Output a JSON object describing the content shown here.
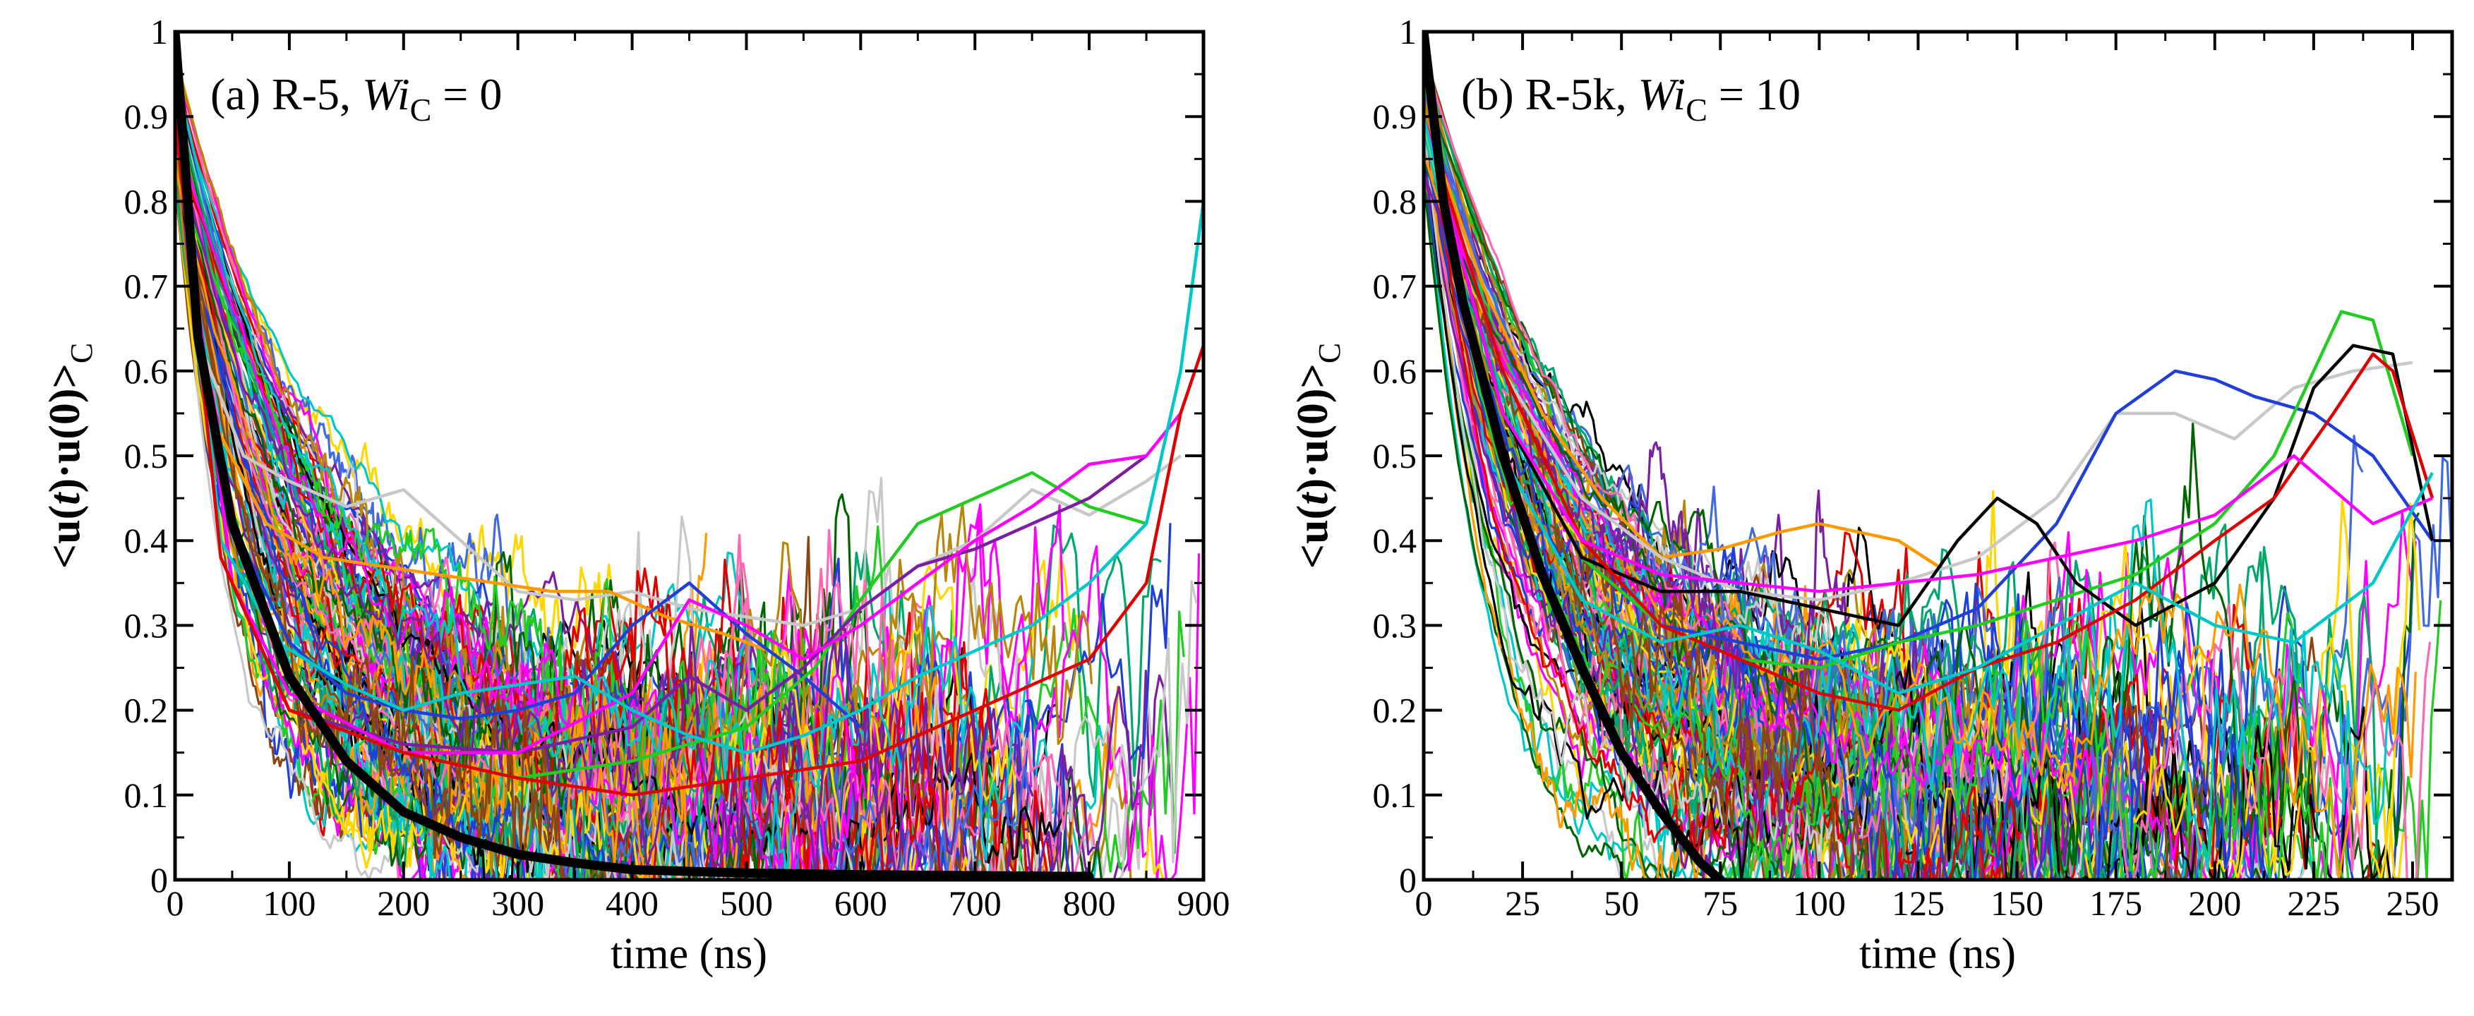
{
  "figure": {
    "background": "#ffffff",
    "axis_color": "#000000"
  },
  "chart_data": [
    {
      "type": "line",
      "panel": "a",
      "annotation": {
        "prefix": "(a) R-5, ",
        "wi": "Wi",
        "sub": "C",
        "value": " = 0"
      },
      "xlabel": "time (ns)",
      "ylabel": {
        "start": "<",
        "u1": "u",
        "lp": "(",
        "t": "t",
        "rp": ")·",
        "u2": "u",
        "zero": "(0)>",
        "sub": "C"
      },
      "xlim": [
        0,
        900
      ],
      "ylim": [
        0,
        1
      ],
      "xticks": [
        0,
        100,
        200,
        300,
        400,
        500,
        600,
        700,
        800,
        900
      ],
      "xtick_labels": [
        "0",
        "100",
        "200",
        "300",
        "400",
        "500",
        "600",
        "700",
        "800",
        "900"
      ],
      "yticks": [
        0,
        0.1,
        0.2,
        0.3,
        0.4,
        0.5,
        0.6,
        0.7,
        0.8,
        0.9,
        1
      ],
      "ytick_labels": [
        "0",
        "0.1",
        "0.2",
        "0.3",
        "0.4",
        "0.5",
        "0.6",
        "0.7",
        "0.8",
        "0.9",
        "1"
      ],
      "highlight": [
        {
          "name": "gray",
          "color": "#c8c8c8",
          "x": [
            0,
            25,
            60,
            100,
            150,
            200,
            250,
            300,
            350,
            400,
            450,
            500,
            550,
            600,
            650,
            700,
            750,
            800,
            850,
            880
          ],
          "y": [
            0.95,
            0.62,
            0.5,
            0.47,
            0.44,
            0.46,
            0.4,
            0.34,
            0.33,
            0.34,
            0.32,
            0.31,
            0.3,
            0.32,
            0.37,
            0.4,
            0.46,
            0.43,
            0.47,
            0.5
          ]
        },
        {
          "name": "orange",
          "color": "#ff9900",
          "x": [
            0,
            30,
            80,
            130,
            180,
            230,
            280,
            330,
            380,
            430,
            480,
            520
          ],
          "y": [
            0.93,
            0.55,
            0.42,
            0.38,
            0.37,
            0.36,
            0.35,
            0.34,
            0.34,
            0.31,
            0.29,
            0.27
          ]
        },
        {
          "name": "blue",
          "color": "#1f3fd8",
          "x": [
            0,
            40,
            100,
            150,
            200,
            250,
            300,
            350,
            400,
            450,
            500,
            550,
            600
          ],
          "y": [
            0.9,
            0.45,
            0.28,
            0.22,
            0.2,
            0.19,
            0.2,
            0.22,
            0.3,
            0.35,
            0.29,
            0.24,
            0.18
          ]
        },
        {
          "name": "green",
          "color": "#22cc22",
          "x": [
            0,
            50,
            100,
            200,
            300,
            400,
            500,
            560,
            600,
            650,
            700,
            750,
            800,
            850
          ],
          "y": [
            0.9,
            0.35,
            0.2,
            0.15,
            0.12,
            0.14,
            0.18,
            0.25,
            0.33,
            0.42,
            0.45,
            0.48,
            0.44,
            0.42
          ]
        },
        {
          "name": "purple",
          "color": "#7a1fa2",
          "x": [
            0,
            50,
            100,
            200,
            300,
            400,
            450,
            500,
            550,
            600,
            650,
            700,
            750,
            800,
            850
          ],
          "y": [
            0.9,
            0.35,
            0.2,
            0.16,
            0.15,
            0.18,
            0.24,
            0.2,
            0.25,
            0.32,
            0.37,
            0.39,
            0.42,
            0.45,
            0.5
          ]
        },
        {
          "name": "magenta",
          "color": "#ff00ff",
          "x": [
            0,
            50,
            100,
            200,
            300,
            400,
            450,
            500,
            550,
            600,
            650,
            700,
            750,
            800,
            850,
            880
          ],
          "y": [
            0.9,
            0.35,
            0.22,
            0.15,
            0.15,
            0.22,
            0.33,
            0.3,
            0.26,
            0.3,
            0.35,
            0.4,
            0.44,
            0.49,
            0.5,
            0.55
          ]
        },
        {
          "name": "teal",
          "color": "#00c8c8",
          "x": [
            0,
            40,
            90,
            150,
            200,
            250,
            300,
            350,
            400,
            450,
            500,
            550,
            600,
            650,
            700,
            750,
            800,
            850,
            880,
            900
          ],
          "y": [
            0.9,
            0.4,
            0.28,
            0.23,
            0.2,
            0.22,
            0.23,
            0.24,
            0.2,
            0.17,
            0.15,
            0.17,
            0.2,
            0.24,
            0.27,
            0.3,
            0.35,
            0.42,
            0.6,
            0.8
          ]
        },
        {
          "name": "red",
          "color": "#e00000",
          "x": [
            0,
            40,
            100,
            200,
            300,
            400,
            500,
            600,
            700,
            800,
            850,
            880,
            900
          ],
          "y": [
            0.9,
            0.38,
            0.2,
            0.15,
            0.12,
            0.1,
            0.12,
            0.14,
            0.2,
            0.26,
            0.35,
            0.55,
            0.63
          ]
        }
      ],
      "average": {
        "color": "#000000",
        "x": [
          0,
          20,
          50,
          100,
          150,
          200,
          250,
          300,
          350,
          400,
          450,
          500,
          600,
          700,
          800
        ],
        "y": [
          1,
          0.64,
          0.42,
          0.24,
          0.14,
          0.08,
          0.05,
          0.03,
          0.02,
          0.012,
          0.01,
          0.008,
          0.006,
          0.005,
          0.004
        ]
      }
    },
    {
      "type": "line",
      "panel": "b",
      "annotation": {
        "prefix": "(b) R-5k, ",
        "wi": "Wi",
        "sub": "C",
        "value": " = 10"
      },
      "xlabel": "time (ns)",
      "ylabel": {
        "start": "<",
        "u1": "u",
        "lp": "(",
        "t": "t",
        "rp": ")·",
        "u2": "u",
        "zero": "(0)>",
        "sub": "C"
      },
      "xlim": [
        0,
        260
      ],
      "ylim": [
        0,
        1
      ],
      "xticks": [
        0,
        25,
        50,
        75,
        100,
        125,
        150,
        175,
        200,
        225,
        250
      ],
      "xtick_labels": [
        "0",
        "25",
        "50",
        "75",
        "100",
        "125",
        "150",
        "175",
        "200",
        "225",
        "250"
      ],
      "yticks": [
        0,
        0.1,
        0.2,
        0.3,
        0.4,
        0.5,
        0.6,
        0.7,
        0.8,
        0.9,
        1
      ],
      "ytick_labels": [
        "0",
        "0.1",
        "0.2",
        "0.3",
        "0.4",
        "0.5",
        "0.6",
        "0.7",
        "0.8",
        "0.9",
        "1"
      ],
      "highlight": [
        {
          "name": "orange",
          "color": "#ff9900",
          "x": [
            0,
            15,
            30,
            45,
            60,
            75,
            90,
            100,
            110,
            120,
            130
          ],
          "y": [
            0.9,
            0.7,
            0.55,
            0.45,
            0.38,
            0.39,
            0.41,
            0.42,
            0.41,
            0.4,
            0.37
          ]
        },
        {
          "name": "gray",
          "color": "#c8c8c8",
          "x": [
            0,
            20,
            40,
            60,
            80,
            100,
            120,
            140,
            160,
            175,
            190,
            205,
            220,
            235,
            250
          ],
          "y": [
            0.9,
            0.6,
            0.45,
            0.38,
            0.34,
            0.33,
            0.35,
            0.38,
            0.45,
            0.55,
            0.55,
            0.52,
            0.58,
            0.6,
            0.61
          ]
        },
        {
          "name": "blue",
          "color": "#1f3fd8",
          "x": [
            0,
            20,
            40,
            60,
            80,
            100,
            120,
            140,
            160,
            175,
            190,
            200,
            210,
            225,
            240,
            255
          ],
          "y": [
            0.9,
            0.55,
            0.38,
            0.3,
            0.28,
            0.26,
            0.28,
            0.32,
            0.42,
            0.55,
            0.6,
            0.59,
            0.57,
            0.55,
            0.5,
            0.4
          ]
        },
        {
          "name": "green",
          "color": "#22cc22",
          "x": [
            0,
            20,
            40,
            60,
            80,
            100,
            120,
            140,
            160,
            180,
            200,
            215,
            225,
            232,
            240,
            250
          ],
          "y": [
            0.9,
            0.55,
            0.38,
            0.3,
            0.26,
            0.25,
            0.28,
            0.3,
            0.33,
            0.36,
            0.42,
            0.5,
            0.6,
            0.67,
            0.66,
            0.5
          ]
        },
        {
          "name": "black",
          "color": "#000000",
          "x": [
            0,
            20,
            40,
            60,
            80,
            100,
            120,
            135,
            145,
            155,
            165,
            180,
            200,
            215,
            225,
            235,
            245,
            255
          ],
          "y": [
            0.9,
            0.55,
            0.38,
            0.34,
            0.34,
            0.32,
            0.3,
            0.4,
            0.45,
            0.42,
            0.35,
            0.3,
            0.35,
            0.45,
            0.58,
            0.63,
            0.62,
            0.4
          ]
        },
        {
          "name": "red",
          "color": "#e00000",
          "x": [
            0,
            20,
            40,
            60,
            80,
            100,
            120,
            140,
            160,
            180,
            200,
            215,
            230,
            240,
            245,
            255
          ],
          "y": [
            0.9,
            0.6,
            0.4,
            0.3,
            0.26,
            0.22,
            0.2,
            0.25,
            0.28,
            0.33,
            0.4,
            0.45,
            0.55,
            0.62,
            0.6,
            0.45
          ]
        },
        {
          "name": "magenta",
          "color": "#ff00ff",
          "x": [
            0,
            20,
            40,
            60,
            80,
            100,
            120,
            140,
            160,
            180,
            200,
            220,
            240,
            255
          ],
          "y": [
            0.9,
            0.55,
            0.4,
            0.36,
            0.35,
            0.34,
            0.35,
            0.36,
            0.38,
            0.4,
            0.43,
            0.5,
            0.42,
            0.45
          ]
        },
        {
          "name": "teal",
          "color": "#00c8c8",
          "x": [
            0,
            20,
            40,
            60,
            80,
            100,
            120,
            140,
            160,
            180,
            200,
            220,
            240,
            255
          ],
          "y": [
            0.9,
            0.5,
            0.33,
            0.28,
            0.3,
            0.27,
            0.22,
            0.25,
            0.3,
            0.35,
            0.3,
            0.28,
            0.35,
            0.48
          ]
        }
      ],
      "average": {
        "color": "#000000",
        "x": [
          0,
          5,
          10,
          20,
          30,
          40,
          50,
          60,
          70,
          75
        ],
        "y": [
          1,
          0.8,
          0.68,
          0.5,
          0.36,
          0.25,
          0.15,
          0.08,
          0.02,
          0
        ]
      }
    }
  ]
}
